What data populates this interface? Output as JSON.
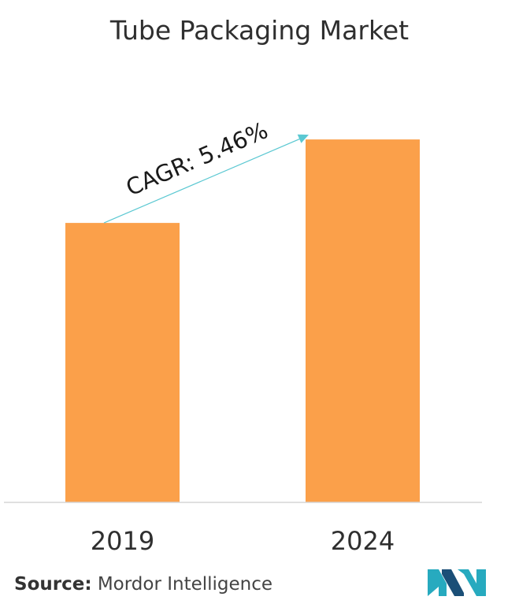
{
  "chart_data": {
    "type": "bar",
    "title": "Tube Packaging Market",
    "categories": [
      "2019",
      "2024"
    ],
    "values": [
      0.77,
      1.0
    ],
    "xlabel": "",
    "ylabel": "",
    "ylim": [
      0,
      1.1
    ],
    "grid": false,
    "legend": "none",
    "annotation": {
      "text": "CAGR: 5.46%",
      "from": "2019",
      "to": "2024"
    }
  },
  "source": {
    "label": "Source:",
    "text": "Mordor Intelligence"
  },
  "colors": {
    "bar": "#FBA04A",
    "axis": "#d6d6d6",
    "cagr_line": "#5bc8d2",
    "logo_teal": "#27aabf",
    "logo_dark": "#1b4f77"
  }
}
